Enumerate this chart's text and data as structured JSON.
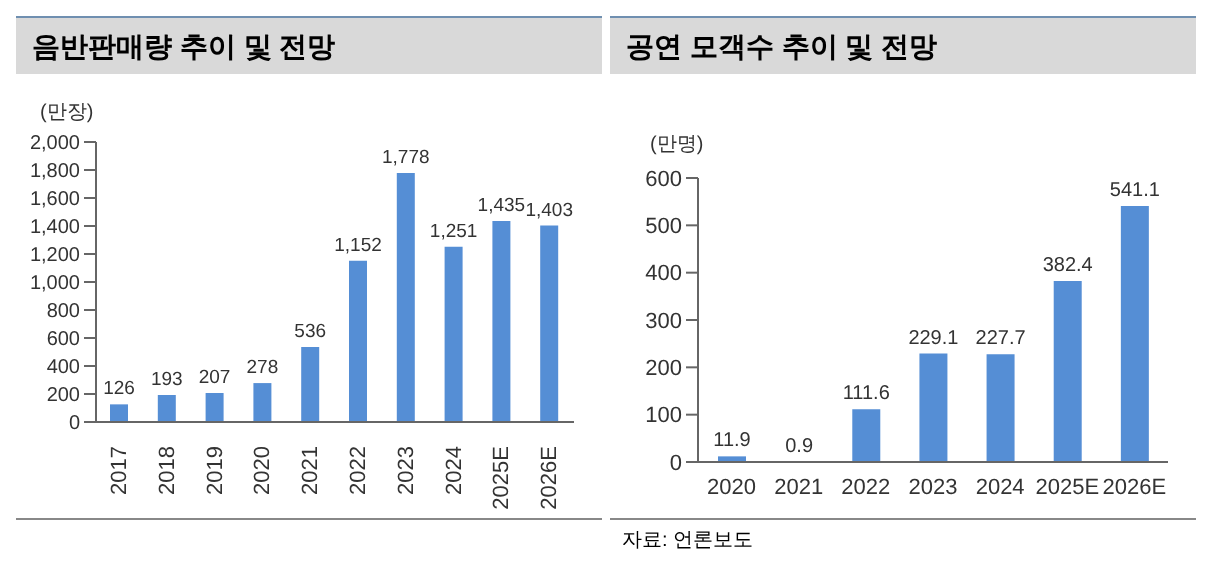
{
  "chart_data": [
    {
      "type": "bar",
      "title": "음반판매량 추이 및 전망",
      "ylabel": "(만장)",
      "categories": [
        "2017",
        "2018",
        "2019",
        "2020",
        "2021",
        "2022",
        "2023",
        "2024",
        "2025E",
        "2026E"
      ],
      "values": [
        126,
        193,
        207,
        278,
        536,
        1152,
        1778,
        1251,
        1435,
        1403
      ],
      "color": "#558ed5",
      "ylim": [
        0,
        2000
      ],
      "yticks": [
        0,
        200,
        400,
        600,
        800,
        {
          "value": 1000,
          "label": "1,000"
        },
        {
          "value": 1200,
          "label": "1,200"
        },
        {
          "value": 1400,
          "label": "1,400"
        },
        {
          "value": 1600,
          "label": "1,600"
        },
        {
          "value": 1800,
          "label": "1,800"
        },
        {
          "value": 2000,
          "label": "2,000"
        }
      ],
      "value_labels": [
        "126",
        "193",
        "207",
        "278",
        "536",
        "1,152",
        "1,778",
        "1,251",
        "1,435",
        "1,403"
      ]
    },
    {
      "type": "bar",
      "title": "공연 모객수 추이 및 전망",
      "ylabel": "(만명)",
      "categories": [
        "2020",
        "2021",
        "2022",
        "2023",
        "2024",
        "2025E",
        "2026E"
      ],
      "values": [
        11.9,
        0.9,
        111.6,
        229.1,
        227.7,
        382.4,
        541.1
      ],
      "color": "#558ed5",
      "ylim": [
        0,
        600
      ],
      "yticks": [
        0,
        100,
        200,
        300,
        400,
        500,
        600
      ],
      "data_labels": true,
      "annotations": [
        "자료: 언론보도"
      ]
    }
  ]
}
